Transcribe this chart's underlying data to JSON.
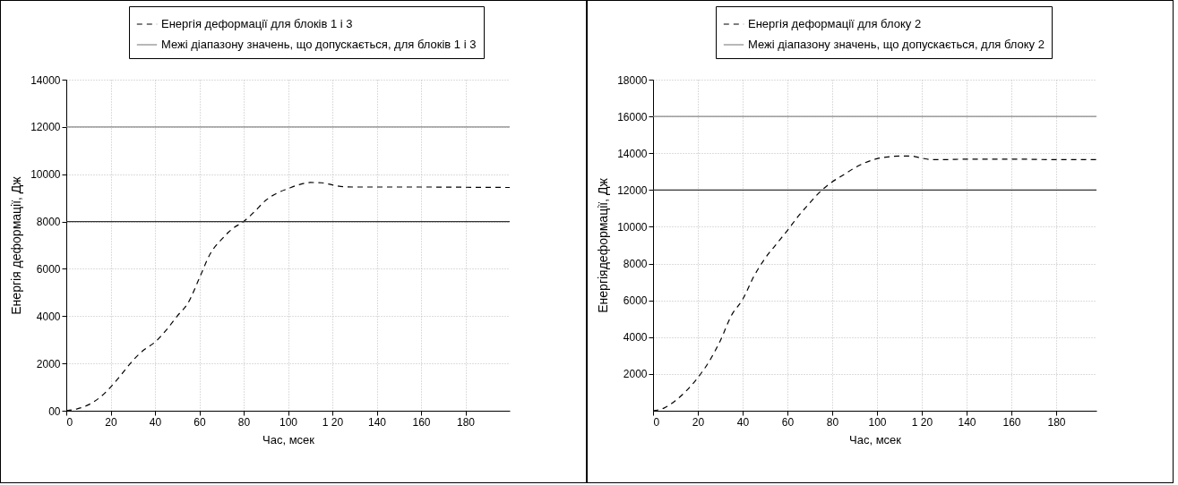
{
  "chart_data": [
    {
      "type": "line",
      "xlabel": "Час, мсек",
      "ylabel": "Енергія деформації, Дж",
      "xlim": [
        0,
        200
      ],
      "ylim": [
        0,
        14000
      ],
      "xticks": [
        0,
        20,
        40,
        60,
        80,
        100,
        {
          "value": 120,
          "label": "1 20"
        },
        140,
        160,
        180
      ],
      "yticks": [
        {
          "value": 0,
          "label": "00"
        },
        2000,
        4000,
        6000,
        8000,
        10000,
        12000,
        14000
      ],
      "grid": true,
      "legend": "top right",
      "series": [
        {
          "name": "Енергія деформації для блоків 1 і 3",
          "color": "#000000",
          "line_style": "dashed",
          "x": [
            0,
            5,
            10,
            15,
            20,
            25,
            30,
            35,
            40,
            45,
            50,
            55,
            60,
            65,
            70,
            75,
            80,
            85,
            90,
            95,
            100,
            105,
            110,
            115,
            120,
            125,
            130,
            140,
            160,
            180,
            200
          ],
          "values": [
            0,
            80,
            250,
            550,
            1000,
            1550,
            2120,
            2570,
            2900,
            3400,
            4000,
            4570,
            5600,
            6650,
            7240,
            7700,
            8000,
            8430,
            8900,
            9200,
            9390,
            9560,
            9650,
            9640,
            9550,
            9470,
            9460,
            9460,
            9460,
            9450,
            9440
          ]
        },
        {
          "name": "Межі діапазону значень, що допускається, для блоків 1 і 3",
          "color": "#888888",
          "line_style": "solid",
          "x": [
            0,
            200
          ],
          "values": [
            12000,
            12000
          ]
        },
        {
          "color": "#333333",
          "line_style": "solid",
          "x": [
            0,
            200
          ],
          "values": [
            8000,
            8000
          ]
        }
      ]
    },
    {
      "type": "line",
      "xlabel": "Час, мсек",
      "ylabel": "Енергіядеформації, Дж",
      "xlim": [
        0,
        198
      ],
      "ylim": [
        0,
        18000
      ],
      "xticks": [
        0,
        20,
        40,
        60,
        80,
        100,
        {
          "value": 120,
          "label": "1 20"
        },
        140,
        160,
        180
      ],
      "yticks": [
        2000,
        4000,
        6000,
        8000,
        10000,
        12000,
        14000,
        16000,
        18000
      ],
      "grid": true,
      "legend": "top right",
      "series": [
        {
          "name": "Енергія деформації для блоку 2",
          "color": "#000000",
          "line_style": "dashed",
          "x": [
            0,
            5,
            10,
            15,
            20,
            25,
            30,
            35,
            40,
            45,
            50,
            55,
            60,
            65,
            70,
            75,
            80,
            85,
            90,
            95,
            100,
            105,
            110,
            115,
            120,
            125,
            130,
            140,
            160,
            180,
            198
          ],
          "values": [
            0,
            150,
            550,
            1100,
            1800,
            2670,
            3800,
            5180,
            6050,
            7300,
            8280,
            9050,
            9800,
            10600,
            11300,
            11950,
            12440,
            12820,
            13200,
            13500,
            13700,
            13800,
            13850,
            13850,
            13730,
            13650,
            13650,
            13680,
            13680,
            13650,
            13650
          ]
        },
        {
          "name": "Межі діапазону значень, що допускається, для блоку 2",
          "color": "#888888",
          "line_style": "solid",
          "x": [
            0,
            198
          ],
          "values": [
            16000,
            16000
          ]
        },
        {
          "color": "#333333",
          "line_style": "solid",
          "x": [
            0,
            198
          ],
          "values": [
            12000,
            12000
          ]
        }
      ]
    }
  ]
}
